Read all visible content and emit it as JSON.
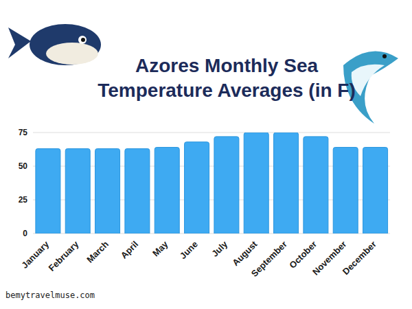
{
  "chart_data": {
    "type": "bar",
    "title": "Azores Monthly Sea Temperature Averages (in F)",
    "categories": [
      "January",
      "February",
      "March",
      "April",
      "May",
      "June",
      "July",
      "August",
      "September",
      "October",
      "November",
      "December"
    ],
    "values": [
      63,
      63,
      63,
      63,
      64,
      68,
      72,
      75,
      75,
      72,
      64,
      64
    ],
    "color": "#3eaaf2",
    "ylim": [
      0,
      75
    ],
    "yticks": [
      0,
      25,
      50,
      75
    ],
    "grid": true,
    "source": "bemytravelmuse.com"
  }
}
